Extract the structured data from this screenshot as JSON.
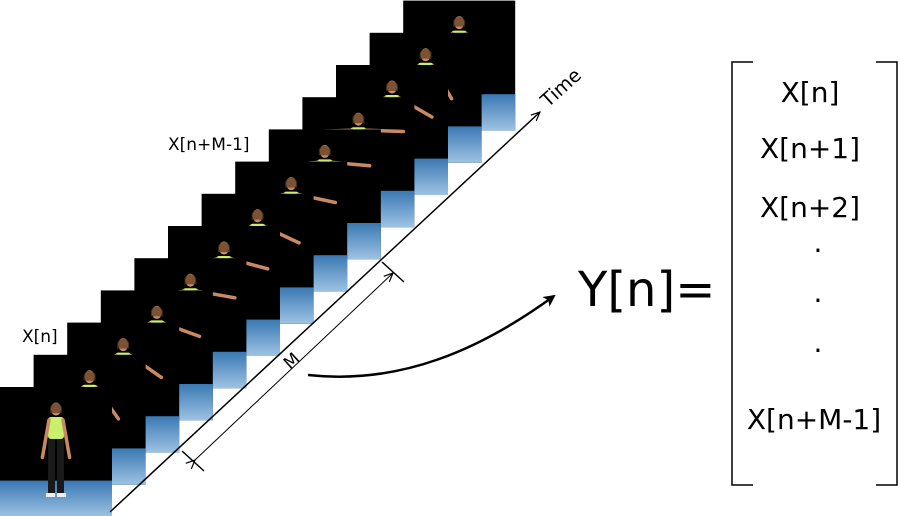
{
  "frame_stack": {
    "first_frame_label": "X[n]",
    "last_frame_label": "X[n+M-1]",
    "frame_count": 13,
    "wall_color": "#000000",
    "floor_color": "#2f6fa8",
    "skin_color": "#c98a63",
    "top_color": "#c8f06a",
    "pants_color": "#1a1a1a"
  },
  "axis": {
    "time_label": "Time",
    "window_label": "M"
  },
  "equation": {
    "lhs": "Y[n]=",
    "vector": [
      "X[n]",
      "X[n+1]",
      "X[n+2]",
      ".",
      ".",
      ".",
      "X[n+M-1]"
    ]
  }
}
